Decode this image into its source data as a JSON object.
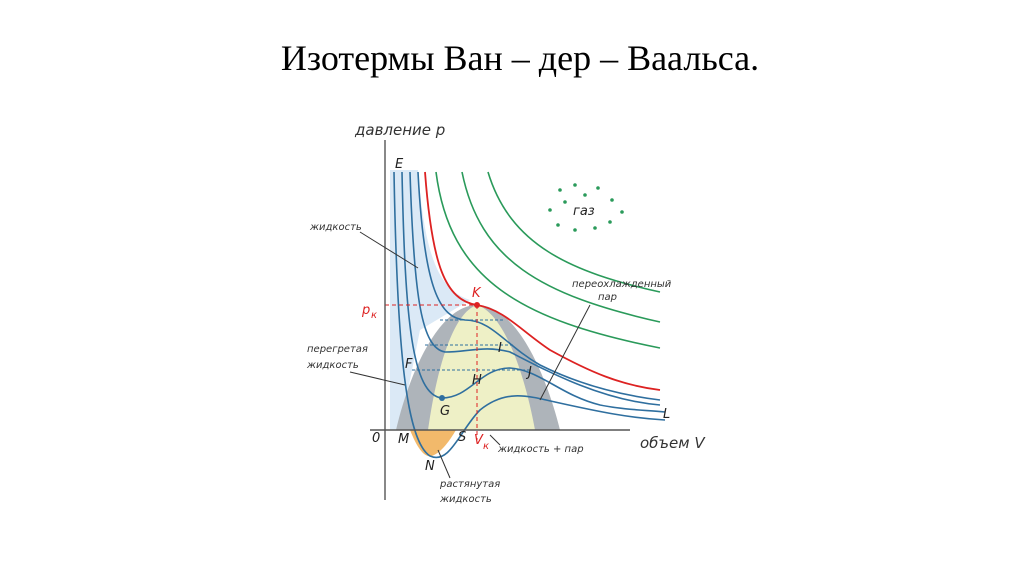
{
  "title": "Изотермы  Ван – дер – Ваальса.",
  "axes": {
    "y_label": "давление p",
    "x_label": "объем V",
    "origin": "0"
  },
  "critical": {
    "point": "K",
    "p": "p",
    "p_sub": "к",
    "v": "V",
    "v_sub": "к"
  },
  "points": {
    "E": "E",
    "F": "F",
    "G": "G",
    "H": "H",
    "I": "I",
    "J": "J",
    "L": "L",
    "M": "M",
    "N": "N",
    "S": "S"
  },
  "labels": {
    "liquid": "жидкость",
    "gas": "газ",
    "supercooled_1": "переохлажденный",
    "supercooled_2": "пар",
    "superheated_1": "перегретая",
    "superheated_2": "жидкость",
    "liquid_vapor": "жидкость + пар",
    "stretched_1": "растянутая",
    "stretched_2": "жидкость"
  }
}
